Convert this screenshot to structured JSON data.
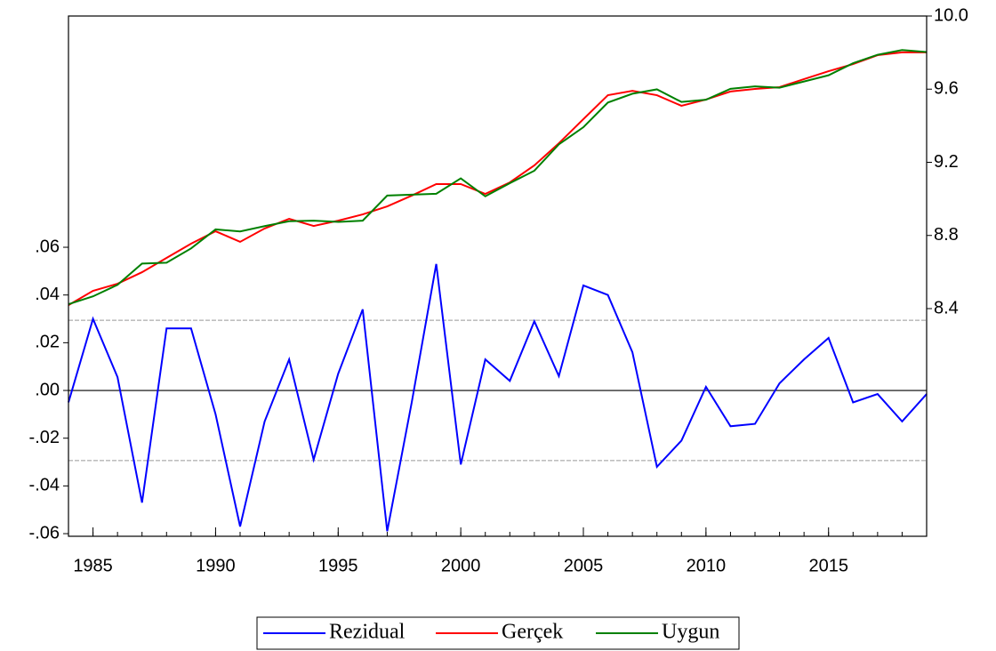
{
  "chart_data": {
    "type": "line",
    "x": [
      1984,
      1985,
      1986,
      1987,
      1988,
      1989,
      1990,
      1991,
      1992,
      1993,
      1994,
      1995,
      1996,
      1997,
      1998,
      1999,
      2000,
      2001,
      2002,
      2003,
      2004,
      2005,
      2006,
      2007,
      2008,
      2009,
      2010,
      2011,
      2012,
      2013,
      2014,
      2015,
      2016,
      2017,
      2018,
      2019
    ],
    "xlim": [
      1984,
      2019
    ],
    "xticks": [
      1985,
      1990,
      1995,
      2000,
      2005,
      2010,
      2015
    ],
    "ylim": [
      -0.0611,
      0.1569
    ],
    "yticks": [
      {
        "value": 0.06,
        "label": ".06"
      },
      {
        "value": 0.04,
        "label": ".04"
      },
      {
        "value": 0.02,
        "label": ".02"
      },
      {
        "value": 0,
        "label": ".00"
      },
      {
        "value": -0.02,
        "label": "-.02"
      },
      {
        "value": -0.04,
        "label": "-.04"
      },
      {
        "value": -0.06,
        "label": "-.06"
      }
    ],
    "y2lim": [
      7.155,
      10.0
    ],
    "y2ticks": [
      {
        "value": 10.0,
        "label": "10.0"
      },
      9.6,
      9.2,
      8.8,
      8.4
    ],
    "reference_lines": [
      0.0294,
      -0.0294
    ],
    "series": [
      {
        "name": "Rezidual",
        "color": "#0000ff",
        "axis": "y",
        "values": [
          -0.005,
          0.03,
          0.0056,
          -0.047,
          0.026,
          0.026,
          -0.01,
          -0.057,
          -0.013,
          0.013,
          -0.029,
          0.007,
          0.034,
          -0.059,
          -0.005,
          0.053,
          -0.031,
          0.013,
          0.004,
          0.029,
          0.006,
          0.044,
          0.04,
          0.016,
          -0.032,
          -0.021,
          0.0015,
          -0.015,
          -0.014,
          0.003,
          0.013,
          0.022,
          -0.005,
          -0.0015,
          -0.013,
          -0.0015
        ]
      },
      {
        "name": "Gerçek",
        "color": "#ff0000",
        "axis": "y2",
        "values": [
          8.419,
          8.497,
          8.536,
          8.599,
          8.677,
          8.755,
          8.823,
          8.765,
          8.838,
          8.891,
          8.852,
          8.881,
          8.915,
          8.959,
          9.018,
          9.081,
          9.081,
          9.027,
          9.09,
          9.183,
          9.304,
          9.436,
          9.567,
          9.591,
          9.567,
          9.509,
          9.543,
          9.587,
          9.601,
          9.611,
          9.655,
          9.698,
          9.737,
          9.786,
          9.801,
          9.801
        ]
      },
      {
        "name": "Uygun",
        "color": "#008000",
        "axis": "y2",
        "values": [
          8.424,
          8.467,
          8.53,
          8.646,
          8.651,
          8.729,
          8.833,
          8.822,
          8.851,
          8.878,
          8.881,
          8.874,
          8.881,
          9.018,
          9.023,
          9.028,
          9.112,
          9.014,
          9.086,
          9.154,
          9.298,
          9.392,
          9.527,
          9.575,
          9.599,
          9.53,
          9.542,
          9.602,
          9.615,
          9.608,
          9.642,
          9.676,
          9.742,
          9.788,
          9.814,
          9.803
        ]
      }
    ]
  }
}
